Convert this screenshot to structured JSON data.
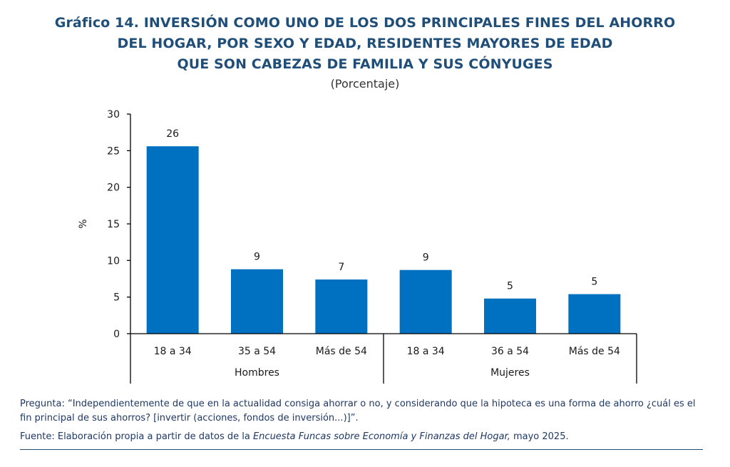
{
  "title": {
    "lines": [
      "Gráfico 14. INVERSIÓN COMO UNO DE LOS DOS PRINCIPALES FINES DEL AHORRO",
      "DEL HOGAR, POR SEXO Y EDAD, RESIDENTES MAYORES DE EDAD",
      "QUE SON CABEZAS DE FAMILIA Y SUS CÓNYUGES"
    ],
    "subtitle": "(Porcentaje)"
  },
  "chart_data": {
    "type": "bar",
    "categories": [
      "18 a 34",
      "35 a 54",
      "Más de 54",
      "18 a 34",
      "36 a 54",
      "Más de 54"
    ],
    "groups": [
      {
        "label": "Hombres",
        "categories": [
          "18 a 34",
          "35 a 54",
          "Más de 54"
        ]
      },
      {
        "label": "Mujeres",
        "categories": [
          "18 a 34",
          "36 a 54",
          "Más de 54"
        ]
      }
    ],
    "values": [
      25.6,
      8.8,
      7.4,
      8.7,
      4.8,
      5.4
    ],
    "data_labels": [
      "26",
      "9",
      "7",
      "9",
      "5",
      "5"
    ],
    "ylabel": "%",
    "xlabel": "",
    "ylim": [
      0,
      30
    ],
    "yticks": [
      "0",
      "5",
      "10",
      "15",
      "20",
      "25",
      "30"
    ],
    "grid": false,
    "legend": "none",
    "colors": {
      "bar": "#0070c0",
      "axis": "#000000"
    }
  },
  "notes": {
    "question": "Pregunta: “Independientemente de que en la actualidad consiga ahorrar o no, y considerando que la hipoteca es una forma de ahorro ¿cuál es el fin principal de sus ahorros? [invertir (acciones, fondos de inversión...)]”.",
    "source_prefix": "Fuente: Elaboración propia a partir de datos de la ",
    "source_italic": "Encuesta Funcas sobre Economía y Finanzas del Hogar,",
    "source_suffix": " mayo 2025."
  }
}
